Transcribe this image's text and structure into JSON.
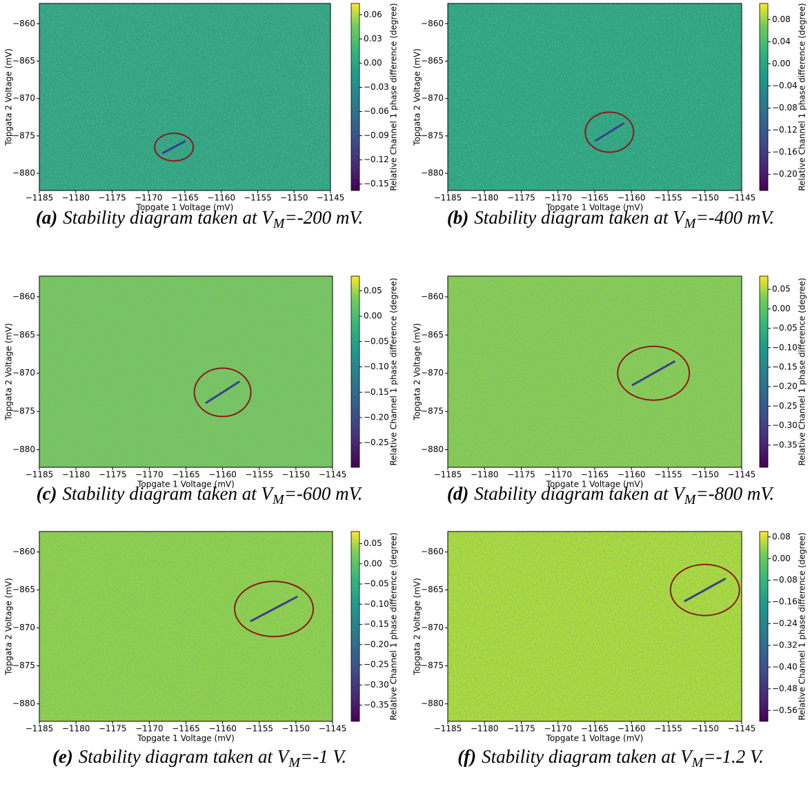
{
  "chart_data": [
    {
      "type": "heatmap",
      "xlabel": "Topgate 1 Voltage (mV)",
      "ylabel": "Topgata 2 Voltage (mV)",
      "colorbar_label": "Relative Channel 1 phase difference (degree)",
      "xlim": [
        -1185,
        -1145
      ],
      "ylim": [
        -882.3,
        -857.3
      ],
      "xticks": [
        {
          "value": -1185,
          "label": "−1185"
        },
        {
          "value": -1180,
          "label": "−1180"
        },
        {
          "value": -1175,
          "label": "−1175"
        },
        {
          "value": -1170,
          "label": "−1170"
        },
        {
          "value": -1165,
          "label": "−1165"
        },
        {
          "value": -1160,
          "label": "−1160"
        },
        {
          "value": -1155,
          "label": "−1155"
        },
        {
          "value": -1150,
          "label": "−1150"
        },
        {
          "value": -1145,
          "label": "−1145"
        }
      ],
      "yticks": [
        {
          "value": -880,
          "label": "−880"
        },
        {
          "value": -875,
          "label": "−875"
        },
        {
          "value": -870,
          "label": "−870"
        },
        {
          "value": -865,
          "label": "−865"
        },
        {
          "value": -860,
          "label": "−860"
        }
      ],
      "clim": [
        -0.158,
        0.074
      ],
      "cticks": [
        0.06,
        0.03,
        {
          "value": 0,
          "label": "0.00"
        },
        {
          "value": -0.03,
          "label": "−0.03"
        },
        {
          "value": -0.06,
          "label": "−0.06"
        },
        {
          "value": -0.09,
          "label": "−0.09"
        },
        {
          "value": -0.12,
          "label": "−0.12"
        },
        {
          "value": -0.15,
          "label": "−0.15"
        }
      ],
      "caption_label": "(a)",
      "caption_text": "Stability diagram taken at V",
      "caption_sub": "M",
      "caption_end": "=-200 mV."
    },
    {
      "type": "heatmap",
      "xlabel": "Topgate 1 Voltage (mV)",
      "ylabel": "Topgata 2 Voltage (mV)",
      "colorbar_label": "Relative Channel 1 phase difference (degree)",
      "xlim": [
        -1185,
        -1145
      ],
      "ylim": [
        -882.3,
        -857.3
      ],
      "xticks": [
        {
          "value": -1185,
          "label": "−1185"
        },
        {
          "value": -1180,
          "label": "−1180"
        },
        {
          "value": -1175,
          "label": "−1175"
        },
        {
          "value": -1170,
          "label": "−1170"
        },
        {
          "value": -1165,
          "label": "−1165"
        },
        {
          "value": -1160,
          "label": "−1160"
        },
        {
          "value": -1155,
          "label": "−1155"
        },
        {
          "value": -1150,
          "label": "−1150"
        },
        {
          "value": -1145,
          "label": "−1145"
        }
      ],
      "yticks": [
        {
          "value": -880,
          "label": "−880"
        },
        {
          "value": -875,
          "label": "−875"
        },
        {
          "value": -870,
          "label": "−870"
        },
        {
          "value": -865,
          "label": "−865"
        },
        {
          "value": -860,
          "label": "−860"
        }
      ],
      "clim": [
        -0.229,
        0.109
      ],
      "cticks": [
        0.08,
        0.04,
        {
          "value": 0,
          "label": "0.00"
        },
        {
          "value": -0.04,
          "label": "−0.04"
        },
        {
          "value": -0.08,
          "label": "−0.08"
        },
        {
          "value": -0.12,
          "label": "−0.12"
        },
        {
          "value": -0.16,
          "label": "−0.16"
        },
        {
          "value": -0.2,
          "label": "−0.20"
        }
      ],
      "caption_label": "(b)",
      "caption_text": "Stability diagram taken at V",
      "caption_sub": "M",
      "caption_end": "=-400 mV."
    },
    {
      "type": "heatmap",
      "xlabel": "Topgate 1 Voltage (mV)",
      "ylabel": "Topgata 2 Voltage (mV)",
      "colorbar_label": "Relative Channel 1 phase difference (degree)",
      "xlim": [
        -1185,
        -1145
      ],
      "ylim": [
        -882.3,
        -857.3
      ],
      "xticks": [
        {
          "value": -1185,
          "label": "−1185"
        },
        {
          "value": -1180,
          "label": "−1180"
        },
        {
          "value": -1175,
          "label": "−1175"
        },
        {
          "value": -1170,
          "label": "−1170"
        },
        {
          "value": -1165,
          "label": "−1165"
        },
        {
          "value": -1160,
          "label": "−1160"
        },
        {
          "value": -1155,
          "label": "−1155"
        },
        {
          "value": -1150,
          "label": "−1150"
        },
        {
          "value": -1145,
          "label": "−1145"
        }
      ],
      "yticks": [
        {
          "value": -880,
          "label": "−880"
        },
        {
          "value": -875,
          "label": "−875"
        },
        {
          "value": -870,
          "label": "−870"
        },
        {
          "value": -865,
          "label": "−865"
        },
        {
          "value": -860,
          "label": "−860"
        }
      ],
      "clim": [
        -0.298,
        0.079
      ],
      "cticks": [
        0.05,
        {
          "value": 0,
          "label": "0.00"
        },
        {
          "value": -0.05,
          "label": "−0.05"
        },
        {
          "value": -0.1,
          "label": "−0.10"
        },
        {
          "value": -0.15,
          "label": "−0.15"
        },
        {
          "value": -0.2,
          "label": "−0.20"
        },
        {
          "value": -0.25,
          "label": "−0.25"
        }
      ],
      "caption_label": "(c)",
      "caption_text": "Stability diagram taken at V",
      "caption_sub": "M",
      "caption_end": "=-600 mV."
    },
    {
      "type": "heatmap",
      "xlabel": "Topgate 1 Voltage (mV)",
      "ylabel": "Topgata 2 Voltage (mV)",
      "colorbar_label": "Relative Channel 1 phase difference (degree)",
      "xlim": [
        -1185,
        -1145
      ],
      "ylim": [
        -882.3,
        -857.3
      ],
      "xticks": [
        {
          "value": -1185,
          "label": "−1185"
        },
        {
          "value": -1180,
          "label": "−1180"
        },
        {
          "value": -1175,
          "label": "−1175"
        },
        {
          "value": -1170,
          "label": "−1170"
        },
        {
          "value": -1165,
          "label": "−1165"
        },
        {
          "value": -1160,
          "label": "−1160"
        },
        {
          "value": -1155,
          "label": "−1155"
        },
        {
          "value": -1150,
          "label": "−1150"
        },
        {
          "value": -1145,
          "label": "−1145"
        }
      ],
      "yticks": [
        {
          "value": -880,
          "label": "−880"
        },
        {
          "value": -875,
          "label": "−875"
        },
        {
          "value": -870,
          "label": "−870"
        },
        {
          "value": -865,
          "label": "−865"
        },
        {
          "value": -860,
          "label": "−860"
        }
      ],
      "clim": [
        -0.407,
        0.084
      ],
      "cticks": [
        0.05,
        {
          "value": 0,
          "label": "0.00"
        },
        {
          "value": -0.05,
          "label": "−0.05"
        },
        {
          "value": -0.1,
          "label": "−0.10"
        },
        {
          "value": -0.15,
          "label": "−0.15"
        },
        {
          "value": -0.2,
          "label": "−0.20"
        },
        {
          "value": -0.25,
          "label": "−0.25"
        },
        {
          "value": -0.3,
          "label": "−0.30"
        },
        {
          "value": -0.35,
          "label": "−0.35"
        }
      ],
      "caption_label": "(d)",
      "caption_text": "Stability diagram taken at V",
      "caption_sub": "M",
      "caption_end": "=-800 mV."
    },
    {
      "type": "heatmap",
      "xlabel": "Topgate 1 Voltage (mV)",
      "ylabel": "Topgata 2 Voltage (mV)",
      "colorbar_label": "Relative Channel 1 phase difference (degree)",
      "xlim": [
        -1185,
        -1145
      ],
      "ylim": [
        -882.3,
        -857.3
      ],
      "xticks": [
        {
          "value": -1185,
          "label": "−1185"
        },
        {
          "value": -1180,
          "label": "−1180"
        },
        {
          "value": -1175,
          "label": "−1175"
        },
        {
          "value": -1170,
          "label": "−1170"
        },
        {
          "value": -1165,
          "label": "−1165"
        },
        {
          "value": -1160,
          "label": "−1160"
        },
        {
          "value": -1155,
          "label": "−1155"
        },
        {
          "value": -1150,
          "label": "−1150"
        },
        {
          "value": -1145,
          "label": "−1145"
        }
      ],
      "yticks": [
        {
          "value": -880,
          "label": "−880"
        },
        {
          "value": -875,
          "label": "−875"
        },
        {
          "value": -870,
          "label": "−870"
        },
        {
          "value": -865,
          "label": "−865"
        },
        {
          "value": -860,
          "label": "−860"
        }
      ],
      "clim": [
        -0.39,
        0.08
      ],
      "cticks": [
        0.05,
        {
          "value": 0,
          "label": "0.00"
        },
        {
          "value": -0.05,
          "label": "−0.05"
        },
        {
          "value": -0.1,
          "label": "−0.10"
        },
        {
          "value": -0.15,
          "label": "−0.15"
        },
        {
          "value": -0.2,
          "label": "−0.20"
        },
        {
          "value": -0.25,
          "label": "−0.25"
        },
        {
          "value": -0.3,
          "label": "−0.30"
        },
        {
          "value": -0.35,
          "label": "−0.35"
        }
      ],
      "caption_label": "(e)",
      "caption_text": "Stability diagram taken at V",
      "caption_sub": "M",
      "caption_end": "=-1 V."
    },
    {
      "type": "heatmap",
      "xlabel": "Topgate 1 Voltage (mV)",
      "ylabel": "Topgata 2 Voltage (mV)",
      "colorbar_label": "Relative Channel 1 phase difference (degree)",
      "xlim": [
        -1185,
        -1145
      ],
      "ylim": [
        -882.3,
        -857.3
      ],
      "xticks": [
        {
          "value": -1185,
          "label": "−1185"
        },
        {
          "value": -1180,
          "label": "−1180"
        },
        {
          "value": -1175,
          "label": "−1175"
        },
        {
          "value": -1170,
          "label": "−1170"
        },
        {
          "value": -1165,
          "label": "−1165"
        },
        {
          "value": -1160,
          "label": "−1160"
        },
        {
          "value": -1155,
          "label": "−1155"
        },
        {
          "value": -1150,
          "label": "−1150"
        },
        {
          "value": -1145,
          "label": "−1145"
        }
      ],
      "yticks": [
        {
          "value": -880,
          "label": "−880"
        },
        {
          "value": -875,
          "label": "−875"
        },
        {
          "value": -870,
          "label": "−870"
        },
        {
          "value": -865,
          "label": "−865"
        },
        {
          "value": -860,
          "label": "−860"
        }
      ],
      "clim": [
        -0.6,
        0.1
      ],
      "cticks": [
        0.08,
        {
          "value": 0,
          "label": "0.00"
        },
        {
          "value": -0.08,
          "label": "−0.08"
        },
        {
          "value": -0.16,
          "label": "−0.16"
        },
        {
          "value": -0.24,
          "label": "−0.24"
        },
        {
          "value": -0.32,
          "label": "−0.32"
        },
        {
          "value": -0.4,
          "label": "−0.40"
        },
        {
          "value": -0.48,
          "label": "−0.48"
        },
        {
          "value": -0.56,
          "label": "−0.56"
        }
      ],
      "caption_label": "(f)",
      "caption_text": "Stability diagram taken at V",
      "caption_sub": "M",
      "caption_end": "=-1.2 V."
    }
  ]
}
